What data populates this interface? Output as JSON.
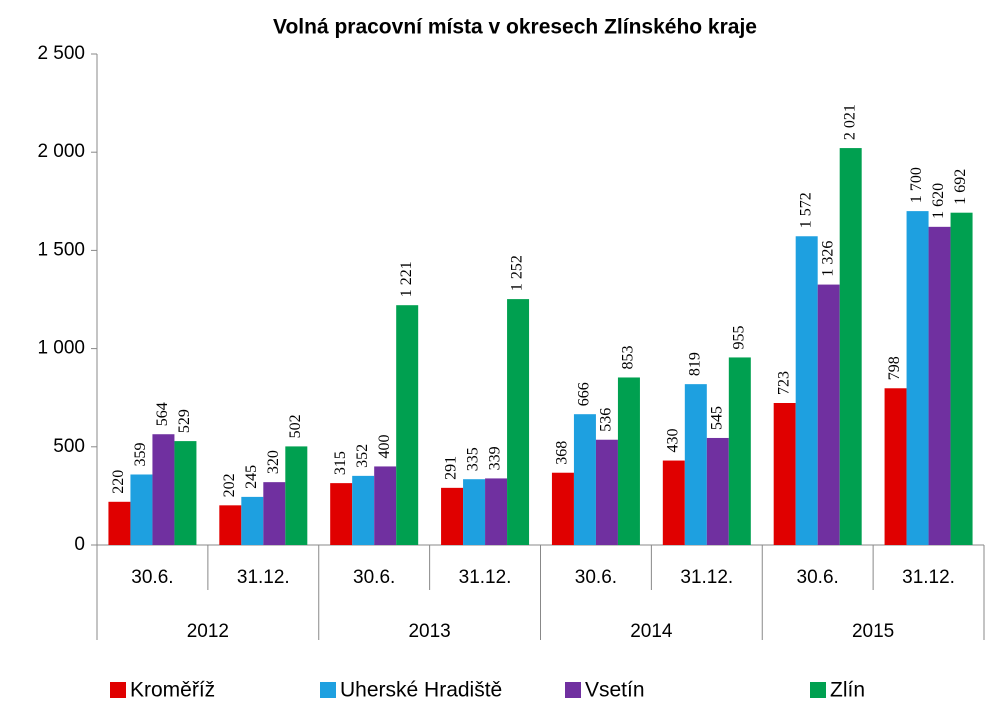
{
  "chart_data": {
    "type": "bar",
    "title": "Volná pracovní místa v okresech Zlínského kraje",
    "categories": [
      "30.6.",
      "31.12.",
      "30.6.",
      "31.12.",
      "30.6.",
      "31.12.",
      "30.6.",
      "31.12."
    ],
    "category_groups": [
      "2012",
      "2013",
      "2014",
      "2015"
    ],
    "series": [
      {
        "name": "Kroměříž",
        "color": "#e00000",
        "values": [
          220,
          202,
          315,
          291,
          368,
          430,
          723,
          798
        ]
      },
      {
        "name": "Uherské Hradiště",
        "color": "#1ea0e0",
        "values": [
          359,
          245,
          352,
          335,
          666,
          819,
          1572,
          1700
        ],
        "value_labels": [
          "359",
          "245",
          "352",
          "335",
          "666",
          "819",
          "1 572",
          "1 700"
        ]
      },
      {
        "name": "Vsetín",
        "color": "#7030a0",
        "values": [
          564,
          320,
          400,
          339,
          536,
          545,
          1326,
          1620
        ],
        "value_labels": [
          "564",
          "320",
          "400",
          "339",
          "536",
          "545",
          "1 326",
          "1 620"
        ]
      },
      {
        "name": "Zlín",
        "color": "#00a050",
        "values": [
          529,
          502,
          1221,
          1252,
          853,
          955,
          2021,
          1692
        ],
        "value_labels": [
          "529",
          "502",
          "1 221",
          "1 252",
          "853",
          "955",
          "2 021",
          "1 692"
        ]
      }
    ],
    "ylim": [
      0,
      2500
    ],
    "yticks": [
      0,
      500,
      {
        "value": 1000,
        "label": "1 000"
      },
      {
        "value": 1500,
        "label": "1 500"
      },
      {
        "value": 2000,
        "label": "2 000"
      },
      {
        "value": 2500,
        "label": "2 500"
      }
    ],
    "grid": false,
    "legend": "bottom"
  }
}
